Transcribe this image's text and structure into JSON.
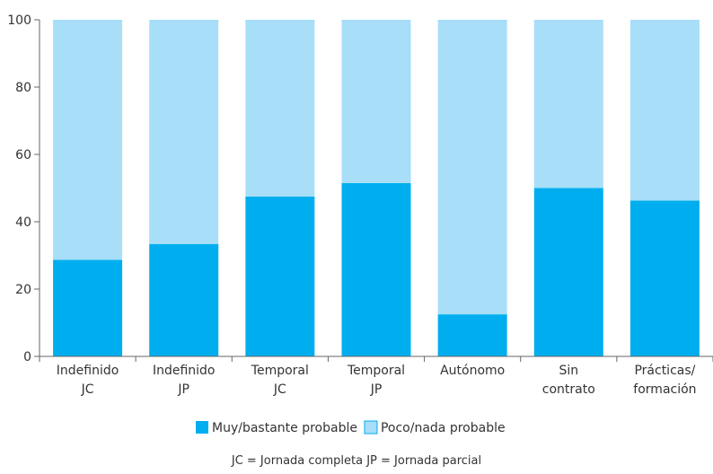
{
  "chart_data": {
    "type": "bar",
    "stacked": true,
    "categories": [
      [
        "Indefinido",
        "JC"
      ],
      [
        "Indefinido",
        "JP"
      ],
      [
        "Temporal",
        "JC"
      ],
      [
        "Temporal",
        "JP"
      ],
      [
        "Autónomo"
      ],
      [
        "Sin",
        "contrato"
      ],
      [
        "Prácticas/",
        "formación"
      ]
    ],
    "series": [
      {
        "name": "Muy/bastante probable",
        "values": [
          28.7,
          33.4,
          47.5,
          51.5,
          12.5,
          50.0,
          46.3
        ],
        "color": "#00AEEF"
      },
      {
        "name": "Poco/nada probable",
        "values": [
          71.3,
          66.6,
          52.5,
          48.5,
          87.5,
          50.0,
          53.7
        ],
        "color": "#A8DEF8"
      }
    ],
    "ylim": [
      0,
      100
    ],
    "yticks": [
      0,
      20,
      40,
      60,
      80,
      100
    ],
    "grid": false,
    "legend_position": "bottom",
    "note": "JC = Jornada completa  JP = Jornada parcial"
  }
}
